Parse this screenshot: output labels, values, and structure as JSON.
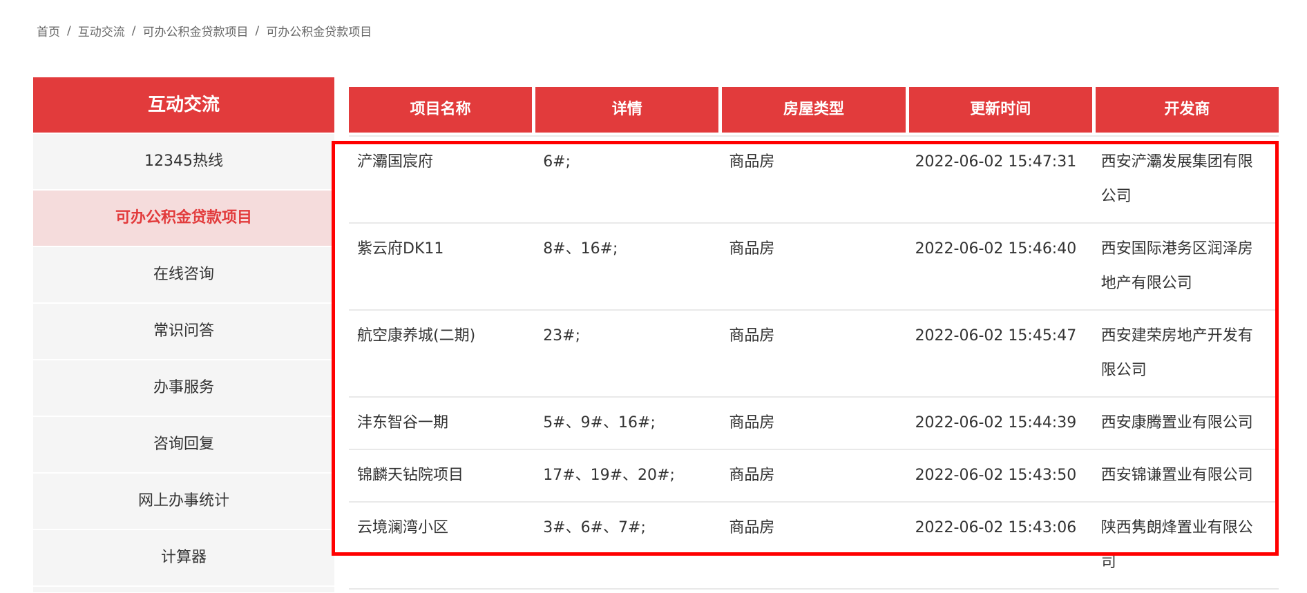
{
  "breadcrumb": {
    "separator": "/",
    "items": [
      "首页",
      "互动交流",
      "可办公积金贷款项目",
      "可办公积金贷款项目"
    ]
  },
  "sidebar": {
    "title": "互动交流",
    "items": [
      {
        "label": "12345热线",
        "active": false
      },
      {
        "label": "可办公积金贷款项目",
        "active": true
      },
      {
        "label": "在线咨询",
        "active": false
      },
      {
        "label": "常识问答",
        "active": false
      },
      {
        "label": "办事服务",
        "active": false
      },
      {
        "label": "咨询回复",
        "active": false
      },
      {
        "label": "网上办事统计",
        "active": false
      },
      {
        "label": "计算器",
        "active": false
      }
    ]
  },
  "table": {
    "headers": [
      "项目名称",
      "详情",
      "房屋类型",
      "更新时间",
      "开发商"
    ],
    "rows": [
      [
        "浐灞国宸府",
        "6#;",
        "商品房",
        "2022-06-02 15:47:31",
        "西安浐灞发展集团有限公司"
      ],
      [
        "紫云府DK11",
        "8#、16#;",
        "商品房",
        "2022-06-02 15:46:40",
        "西安国际港务区润泽房地产有限公司"
      ],
      [
        "航空康养城(二期)",
        "23#;",
        "商品房",
        "2022-06-02 15:45:47",
        "西安建荣房地产开发有限公司"
      ],
      [
        "沣东智谷一期",
        "5#、9#、16#;",
        "商品房",
        "2022-06-02 15:44:39",
        "西安康腾置业有限公司"
      ],
      [
        "锦麟天钻院项目",
        "17#、19#、20#;",
        "商品房",
        "2022-06-02 15:43:50",
        "西安锦谦置业有限公司"
      ],
      [
        "云境澜湾小区",
        "3#、6#、7#;",
        "商品房",
        "2022-06-02 15:43:06",
        "陕西隽朗烽置业有限公司"
      ]
    ]
  },
  "colors": {
    "accent_red": "#e23b3c",
    "active_item_bg": "#f5dcdc",
    "item_bg": "#f5f5f5",
    "row_line": "#e9e9e9",
    "highlight_border": "#ff0000"
  }
}
